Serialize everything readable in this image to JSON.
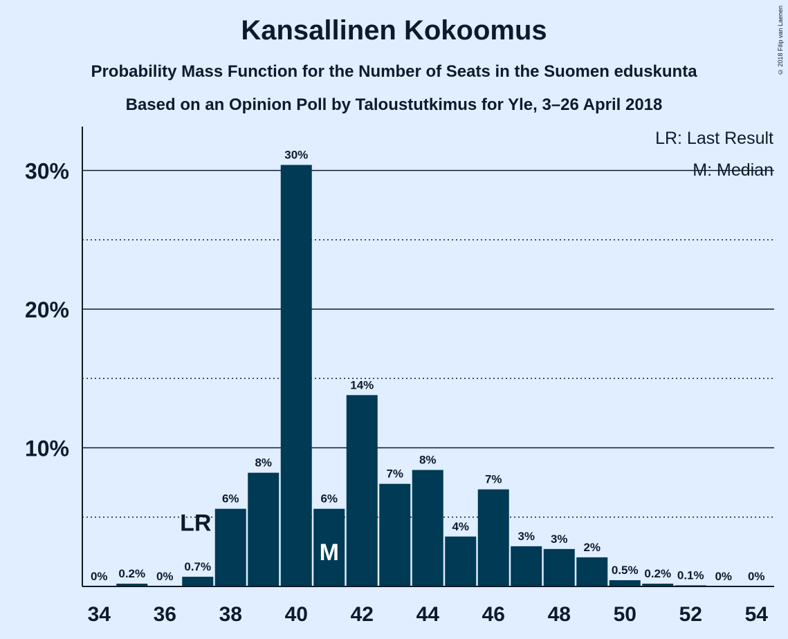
{
  "header": {
    "title": "Kansallinen Kokoomus",
    "subtitle": "Probability Mass Function for the Number of Seats in the Suomen eduskunta",
    "source": "Based on an Opinion Poll by Taloustutkimus for Yle, 3–26 April 2018",
    "copyright": "© 2018 Filip van Laenen"
  },
  "legend": {
    "last_result": "LR: Last Result",
    "median": "M: Median"
  },
  "colors": {
    "background": "#e0eeff",
    "bar": "#003a55",
    "text": "#0d1a2b"
  },
  "chart_data": {
    "type": "bar",
    "title": "Kansallinen Kokoomus",
    "xlabel": "",
    "ylabel": "",
    "ylim": [
      0,
      33
    ],
    "grid": "solid at 10% steps, dotted at 5% steps",
    "legend_placement": "top-right",
    "x": [
      34,
      35,
      36,
      37,
      38,
      39,
      40,
      41,
      42,
      43,
      44,
      45,
      46,
      47,
      48,
      49,
      50,
      51,
      52,
      53,
      54
    ],
    "values": [
      0,
      0.2,
      0,
      0.7,
      5.6,
      8.2,
      30.4,
      5.6,
      13.8,
      7.4,
      8.4,
      3.6,
      7.0,
      2.9,
      2.7,
      2.1,
      0.45,
      0.2,
      0.08,
      0,
      0
    ],
    "labels": [
      "0%",
      "0.2%",
      "0%",
      "0.7%",
      "6%",
      "8%",
      "30%",
      "6%",
      "14%",
      "7%",
      "8%",
      "4%",
      "7%",
      "3%",
      "3%",
      "2%",
      "0.5%",
      "0.2%",
      "0.1%",
      "0%",
      "0%"
    ],
    "x_tick_labels": [
      "34",
      "36",
      "38",
      "40",
      "42",
      "44",
      "46",
      "48",
      "50",
      "52",
      "54"
    ],
    "y_tick_labels": [
      "10%",
      "20%",
      "30%"
    ],
    "y_tick_values": [
      10,
      20,
      30
    ],
    "markers": [
      {
        "seat": 37,
        "label": "LR"
      },
      {
        "seat": 41,
        "label": "M"
      }
    ]
  }
}
